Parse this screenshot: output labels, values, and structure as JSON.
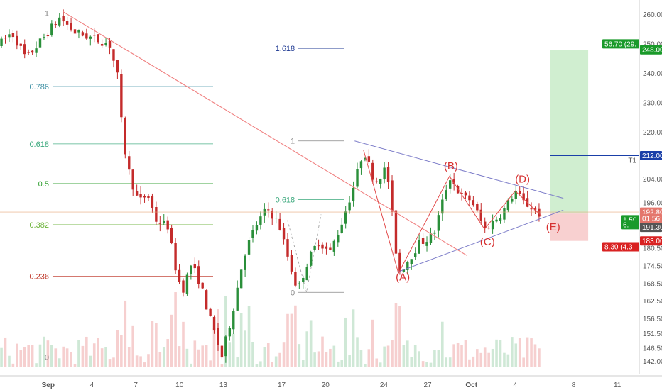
{
  "chart_data": {
    "type": "candlestick",
    "price_axis": {
      "ticks": [
        "260.00",
        "250.00",
        "240.00",
        "230.00",
        "220.00",
        "212.00",
        "204.00",
        "196.00",
        "192.80",
        "191.30",
        "183.00",
        "180.50",
        "174.50",
        "168.50",
        "162.50",
        "156.50",
        "151.50",
        "146.50",
        "142.00"
      ],
      "range": [
        140,
        263
      ]
    },
    "time_axis": {
      "ticks": [
        {
          "label": "Sep",
          "day": 0
        },
        {
          "label": "4",
          "day": 3
        },
        {
          "label": "7",
          "day": 6
        },
        {
          "label": "10",
          "day": 9
        },
        {
          "label": "13",
          "day": 12
        },
        {
          "label": "17",
          "day": 16
        },
        {
          "label": "20",
          "day": 19
        },
        {
          "label": "24",
          "day": 23
        },
        {
          "label": "27",
          "day": 26
        },
        {
          "label": "Oct",
          "day": 29
        },
        {
          "label": "4",
          "day": 32
        },
        {
          "label": "8",
          "day": 36
        },
        {
          "label": "11",
          "day": 39
        }
      ],
      "range": [
        -3.3,
        40.5
      ]
    },
    "fib_retracement_1": {
      "levels": [
        {
          "label": "1",
          "price": 260.5,
          "color": "#888888"
        },
        {
          "label": "0.786",
          "price": 235.5,
          "color": "#3d8fa3"
        },
        {
          "label": "0.618",
          "price": 216.0,
          "color": "#3aa87c"
        },
        {
          "label": "0.5",
          "price": 202.5,
          "color": "#2d9e2d"
        },
        {
          "label": "0.382",
          "price": 188.5,
          "color": "#6cb33a"
        },
        {
          "label": "0.236",
          "price": 171.0,
          "color": "#c0392b"
        },
        {
          "label": "0",
          "price": 143.5,
          "color": "#888888"
        }
      ],
      "day_range": [
        0.3,
        11.3
      ]
    },
    "fib_extension_2": {
      "levels": [
        {
          "label": "1.618",
          "price": 248.5,
          "color": "#1f3a93"
        },
        {
          "label": "1",
          "price": 217.0,
          "color": "#888888"
        },
        {
          "label": "0.618",
          "price": 197.0,
          "color": "#3aa87c"
        },
        {
          "label": "0",
          "price": 165.5,
          "color": "#888888"
        }
      ],
      "day_range": [
        17.1,
        20.3
      ]
    },
    "wave_labels": [
      {
        "label": "(A)",
        "day": 24.3,
        "price": 169.5
      },
      {
        "label": "(B)",
        "day": 27.6,
        "price": 207.3
      },
      {
        "label": "(C)",
        "day": 30.1,
        "price": 181.5
      },
      {
        "label": "(D)",
        "day": 32.5,
        "price": 202.8
      },
      {
        "label": "(E)",
        "day": 34.6,
        "price": 186.5
      }
    ],
    "wave_points": [
      {
        "day": 21.6,
        "price": 214.0
      },
      {
        "day": 24.0,
        "price": 172.0
      },
      {
        "day": 27.5,
        "price": 205.0
      },
      {
        "day": 29.9,
        "price": 187.0
      },
      {
        "day": 32.0,
        "price": 200.0
      },
      {
        "day": 33.8,
        "price": 191.5
      }
    ],
    "triangle_upper": [
      {
        "day": 21.0,
        "price": 217.0
      },
      {
        "day": 35.3,
        "price": 197.5
      }
    ],
    "triangle_lower": [
      {
        "day": 24.0,
        "price": 172.5
      },
      {
        "day": 35.3,
        "price": 193.5
      }
    ],
    "trendline": [
      {
        "day": 1.0,
        "price": 261.0
      },
      {
        "day": 28.7,
        "price": 178.0
      }
    ],
    "position": {
      "entry": 192.3,
      "target": 248.0,
      "stop": 183.0,
      "t1": 212.0,
      "t1_label": "T1",
      "day_range": [
        34.4,
        37.0
      ]
    },
    "badges": [
      {
        "text": "56.70 (29.",
        "price": 250.0,
        "bg": "#1a9a2a",
        "fg": "#ffffff",
        "pos": "left"
      },
      {
        "text": "248.00",
        "price": 248.0,
        "bg": "#1a9a2a",
        "fg": "#ffffff",
        "pos": "axis"
      },
      {
        "text": "212.00",
        "price": 212.0,
        "bg": "#1a3fa8",
        "fg": "#ffffff",
        "pos": "axis"
      },
      {
        "text": "192.80",
        "price": 192.8,
        "bg": "#e4766c",
        "fg": "#ffffff",
        "pos": "axis"
      },
      {
        "text": "01:56:31",
        "price": 190.6,
        "bg": "#e4766c",
        "fg": "#ffffff",
        "pos": "axis"
      },
      {
        "text": "191.30",
        "price": 187.6,
        "bg": "#555555",
        "fg": "#ffffff",
        "pos": "axis"
      },
      {
        "text": "183.00",
        "price": 183.0,
        "bg": "#d92222",
        "fg": "#ffffff",
        "pos": "axis"
      },
      {
        "text": "1.50",
        "price": 190.2,
        "bg": "#1a9a2a",
        "fg": "#ffffff",
        "pos": "left2"
      },
      {
        "text": "6.",
        "price": 188.5,
        "bg": "#1a9a2a",
        "fg": "#ffffff",
        "pos": "left2b"
      },
      {
        "text": "8.30 (4.3",
        "price": 181.0,
        "bg": "#d92222",
        "fg": "#ffffff",
        "pos": "left"
      }
    ]
  }
}
